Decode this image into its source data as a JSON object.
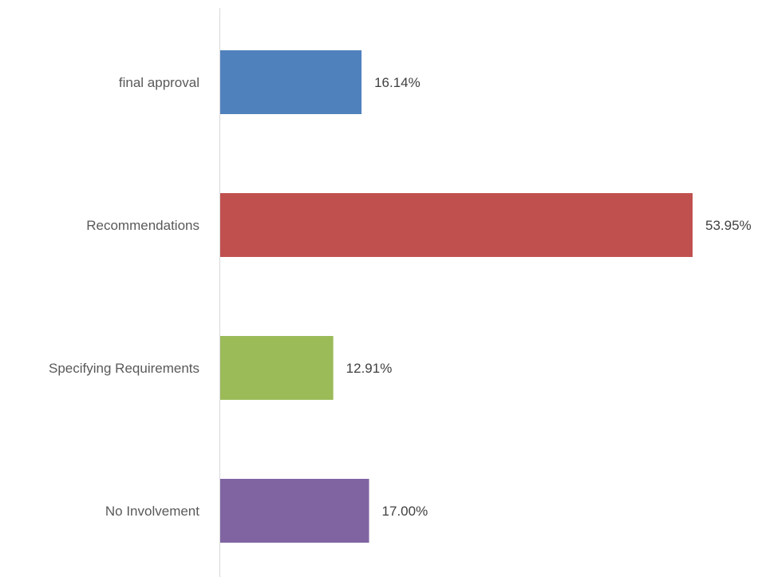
{
  "chart_data": {
    "type": "bar",
    "orientation": "horizontal",
    "categories": [
      "final approval",
      "Recommendations",
      "Specifying Requirements",
      "No Involvement"
    ],
    "values": [
      16.14,
      53.95,
      12.91,
      17.0
    ],
    "data_labels": [
      "16.14%",
      "53.95%",
      "12.91%",
      "17.00%"
    ],
    "colors": [
      "#4f81bd",
      "#c0504d",
      "#9bbb59",
      "#8064a2"
    ],
    "unit": "%",
    "xlim": [
      0,
      54
    ],
    "grid": false,
    "legend": "none"
  }
}
